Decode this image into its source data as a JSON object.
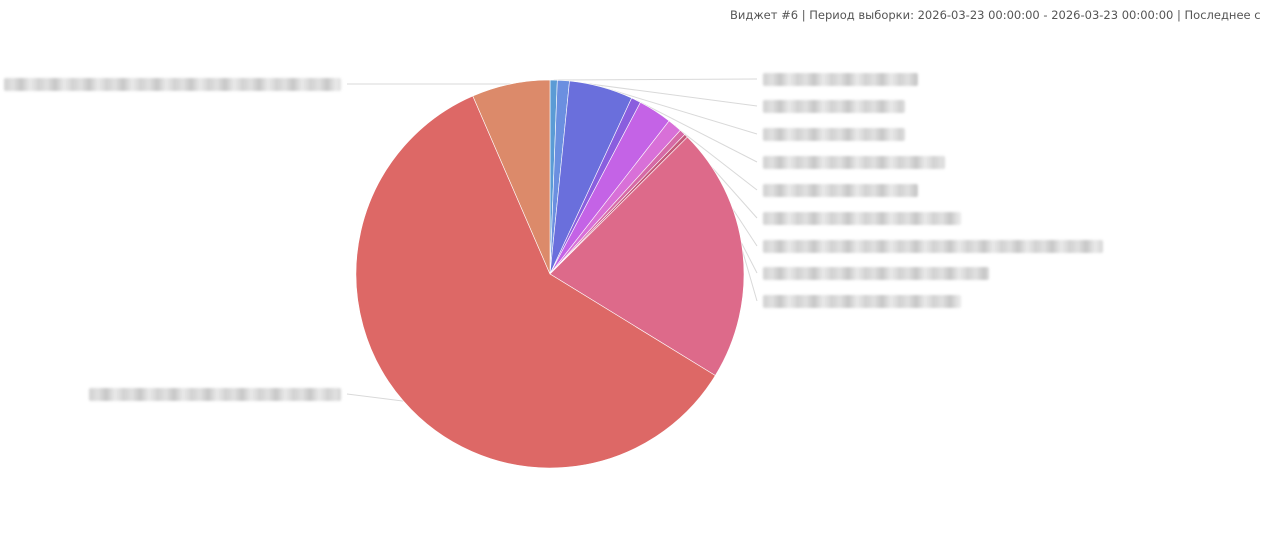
{
  "header": {
    "info_text": "Виджет #6 | Период выборки: 2026-03-23 00:00:00 - 2026-03-23 00:00:00 | Последнее с"
  },
  "chart_data": {
    "type": "pie",
    "title": "",
    "labels_redacted": true,
    "start_angle": "top",
    "direction": "clockwise",
    "slices": [
      {
        "value": 0.6,
        "color": "#5b9bd5"
      },
      {
        "value": 1.0,
        "color": "#6b8fe0"
      },
      {
        "value": 5.3,
        "color": "#6a6fdc"
      },
      {
        "value": 0.8,
        "color": "#8a5ede"
      },
      {
        "value": 2.8,
        "color": "#c463e6"
      },
      {
        "value": 1.2,
        "color": "#d870d8"
      },
      {
        "value": 0.5,
        "color": "#d66aa6"
      },
      {
        "value": 0.3,
        "color": "#c45a7a"
      },
      {
        "value": 21.2,
        "color": "#dd6a8a"
      },
      {
        "value": 59.6,
        "color": "#dd6866"
      },
      {
        "value": 6.5,
        "color": "#dc8a6a"
      }
    ]
  }
}
